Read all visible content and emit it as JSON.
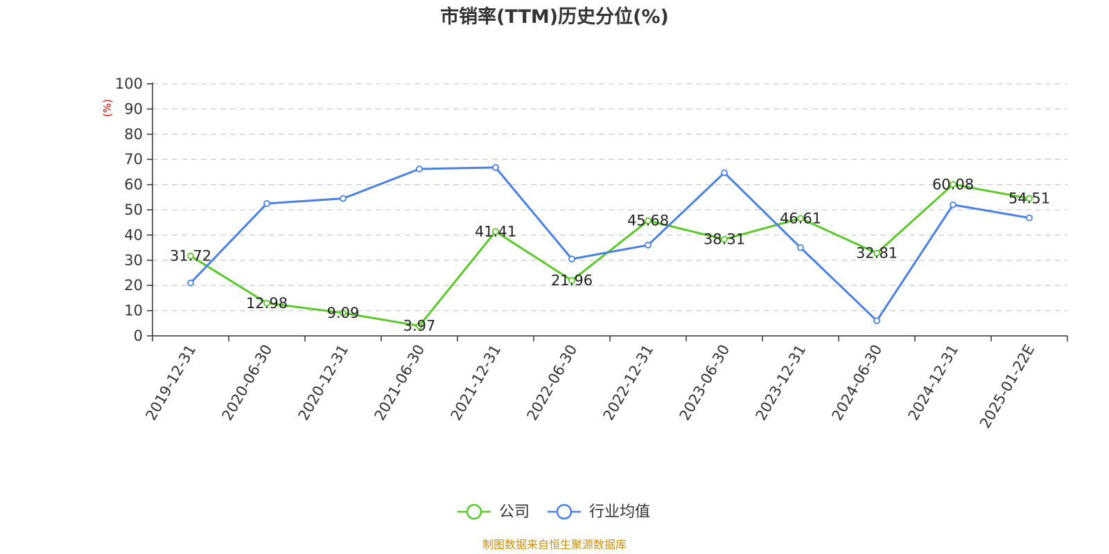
{
  "colors": {
    "company": "#5cc72b",
    "industry": "#4a80e0",
    "source": "#c8900e",
    "ylabel": "#e60000"
  },
  "chart_data": {
    "type": "line",
    "title": "市销率(TTM)历史分位(%)",
    "ylabel": "(%)",
    "xlabel": "",
    "ylim": [
      0,
      100
    ],
    "yticks": [
      0,
      10,
      20,
      30,
      40,
      50,
      60,
      70,
      80,
      90,
      100
    ],
    "grid": true,
    "legend_position": "bottom",
    "categories": [
      "2019-12-31",
      "2020-06-30",
      "2020-12-31",
      "2021-06-30",
      "2021-12-31",
      "2022-06-30",
      "2022-12-31",
      "2023-06-30",
      "2023-12-31",
      "2024-06-30",
      "2024-12-31",
      "2025-01-22E"
    ],
    "series": [
      {
        "name": "公司",
        "color": "#5cc72b",
        "values": [
          31.72,
          12.98,
          9.09,
          3.97,
          41.41,
          21.96,
          45.68,
          38.31,
          46.61,
          32.81,
          60.08,
          54.51
        ],
        "labels": [
          "31.72",
          "12.98",
          "9.09",
          "3.97",
          "41.41",
          "21.96",
          "45.68",
          "38.31",
          "46.61",
          "32.81",
          "60.08",
          "54.51"
        ]
      },
      {
        "name": "行业均值",
        "color": "#4a80e0",
        "values": [
          21.0,
          52.5,
          54.5,
          66.2,
          66.8,
          30.5,
          36.0,
          64.7,
          35.0,
          6.0,
          52.0,
          46.8
        ]
      }
    ]
  },
  "legend": {
    "company": "公司",
    "industry": "行业均值"
  },
  "source": "制图数据来自恒生聚源数据库"
}
